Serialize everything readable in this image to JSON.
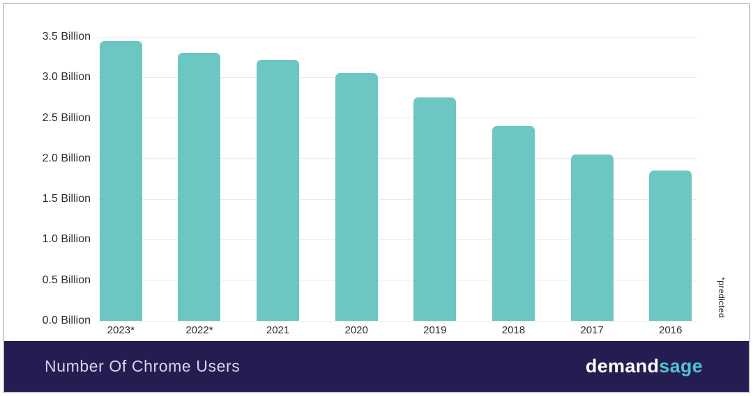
{
  "chart_data": {
    "type": "bar",
    "title": "Number Of Chrome Users",
    "categories": [
      "2023*",
      "2022*",
      "2021",
      "2020",
      "2019",
      "2018",
      "2017",
      "2016"
    ],
    "values": [
      3.45,
      3.3,
      3.22,
      3.05,
      2.75,
      2.4,
      2.05,
      1.85
    ],
    "unit": "Billion",
    "xlabel": "",
    "ylabel": "",
    "ylim": [
      0,
      3.5
    ],
    "y_ticks": [
      {
        "value": 3.5,
        "label": "3.5 Billion"
      },
      {
        "value": 3.0,
        "label": "3.0 Billion"
      },
      {
        "value": 2.5,
        "label": "2.5 Billion"
      },
      {
        "value": 2.0,
        "label": "2.0 Billion"
      },
      {
        "value": 1.5,
        "label": "1.5 Billion"
      },
      {
        "value": 1.0,
        "label": "1.0 Billion"
      },
      {
        "value": 0.5,
        "label": "0.5 Billion"
      },
      {
        "value": 0.0,
        "label": "0.0 Billion"
      }
    ],
    "grid": "horizontal",
    "legend": "none",
    "annotation": "*predicted",
    "bar_color": "#6cc6c1"
  },
  "footer": {
    "title": "Number Of Chrome Users",
    "background_color": "#241d51",
    "title_color": "#d8d4ee",
    "logo": {
      "part1": "demand",
      "part2": "sage",
      "part1_color": "#ffffff",
      "part2_color": "#4ec3cb"
    }
  }
}
